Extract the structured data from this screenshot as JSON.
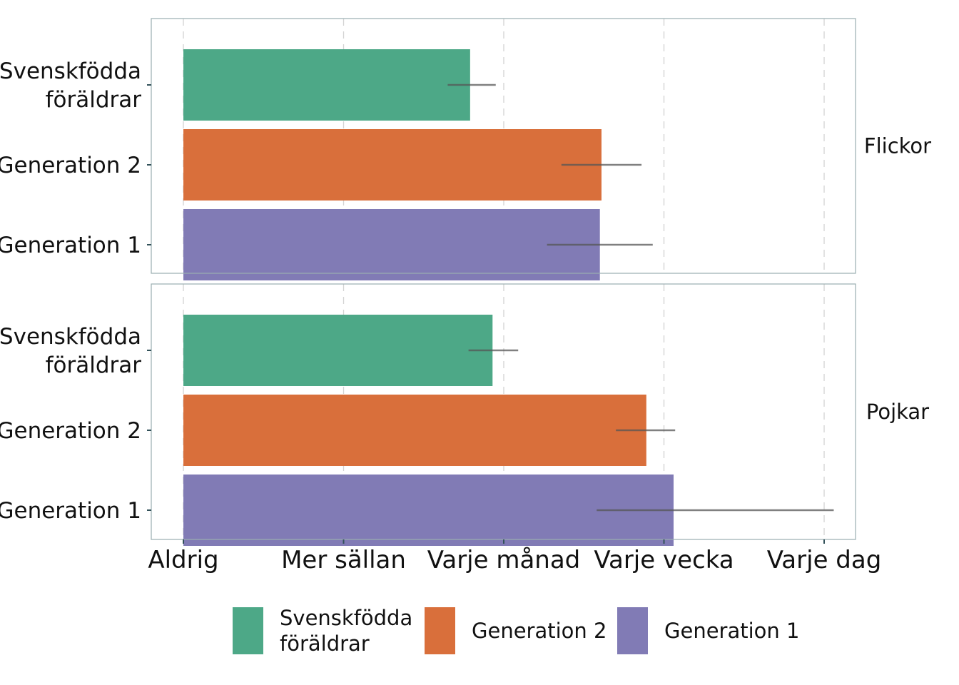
{
  "chart_data": {
    "type": "bar",
    "orientation": "horizontal",
    "x_axis": {
      "ticks": [
        "Aldrig",
        "Mer sällan",
        "Varje månad",
        "Varje vecka",
        "Varje dag"
      ],
      "range": [
        1,
        5
      ],
      "grid": "vertical-dashed"
    },
    "colors": {
      "Svenskfödda föräldrar": "#4DA887",
      "Generation 2": "#D96F3B",
      "Generation 1": "#817BB5"
    },
    "panels": [
      {
        "label": "Flickor",
        "bars": [
          {
            "category": "Svenskfödda föräldrar",
            "label_lines": [
              "Svenskfödda",
              "föräldrar"
            ],
            "value": 2.79,
            "ci": [
              2.65,
              2.95
            ]
          },
          {
            "category": "Generation 2",
            "label_lines": [
              "Generation 2"
            ],
            "value": 3.61,
            "ci": [
              3.36,
              3.86
            ]
          },
          {
            "category": "Generation 1",
            "label_lines": [
              "Generation 1"
            ],
            "value": 3.6,
            "ci": [
              3.27,
              3.93
            ]
          }
        ]
      },
      {
        "label": "Pojkar",
        "bars": [
          {
            "category": "Svenskfödda föräldrar",
            "label_lines": [
              "Svenskfödda",
              "föräldrar"
            ],
            "value": 2.93,
            "ci": [
              2.78,
              3.09
            ]
          },
          {
            "category": "Generation 2",
            "label_lines": [
              "Generation 2"
            ],
            "value": 3.89,
            "ci": [
              3.7,
              4.07
            ]
          },
          {
            "category": "Generation 1",
            "label_lines": [
              "Generation 1"
            ],
            "value": 4.06,
            "ci": [
              3.58,
              5.06
            ]
          }
        ]
      }
    ],
    "legend": {
      "placement": "bottom",
      "items": [
        {
          "key": "Svenskfödda föräldrar",
          "label_lines": [
            "Svenskfödda",
            "föräldrar"
          ]
        },
        {
          "key": "Generation 2",
          "label_lines": [
            "Generation 2"
          ]
        },
        {
          "key": "Generation 1",
          "label_lines": [
            "Generation 1"
          ]
        }
      ]
    }
  }
}
